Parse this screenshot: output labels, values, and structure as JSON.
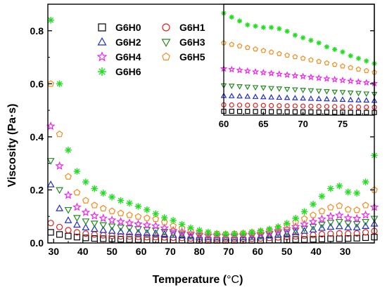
{
  "chart_data": {
    "type": "scatter",
    "title": "",
    "xlabel_prefix": "Temperature (",
    "xlabel_unit": "°C",
    "xlabel_suffix": ")",
    "ylabel": "Viscosity (Pa·s)",
    "ylim": [
      0,
      0.9
    ],
    "yticks": [
      "0.0",
      "0.2",
      "0.4",
      "0.6",
      "0.8"
    ],
    "xtick_labels": [
      "30",
      "40",
      "50",
      "60",
      "70",
      "80",
      "70",
      "60",
      "50",
      "40",
      "30"
    ],
    "x_axis_note": "Heating 29→85 °C then cooling 85→30 °C; x values are sequential process coordinates p (0–111), tick labels show temperature",
    "xlim_process": [
      -1,
      111
    ],
    "xtick_process": [
      1,
      11,
      21,
      31,
      41,
      51,
      61,
      71,
      81,
      91,
      101
    ],
    "legend_position": "upper-left",
    "series": [
      {
        "name": "G6H0",
        "marker": "square",
        "color": "#000000",
        "x": [
          0,
          3,
          6,
          9,
          12,
          15,
          18,
          21,
          24,
          27,
          30,
          33,
          36,
          39,
          42,
          45,
          48,
          51,
          54,
          57,
          60,
          63,
          66,
          69,
          72,
          75,
          78,
          81,
          84,
          87,
          90,
          93,
          96,
          99,
          102,
          105,
          108,
          111
        ],
        "y": [
          0.04,
          0.032,
          0.026,
          0.022,
          0.019,
          0.017,
          0.016,
          0.015,
          0.014,
          0.013,
          0.013,
          0.012,
          0.012,
          0.011,
          0.011,
          0.011,
          0.01,
          0.01,
          0.01,
          0.01,
          0.01,
          0.01,
          0.01,
          0.01,
          0.01,
          0.011,
          0.011,
          0.012,
          0.013,
          0.013,
          0.014,
          0.015,
          0.016,
          0.016,
          0.017,
          0.018,
          0.02,
          0.022
        ]
      },
      {
        "name": "G6H1",
        "marker": "circle",
        "color": "#e0201b",
        "x": [
          0,
          3,
          6,
          9,
          12,
          15,
          18,
          21,
          24,
          27,
          30,
          33,
          36,
          39,
          42,
          45,
          48,
          51,
          54,
          57,
          60,
          63,
          66,
          69,
          72,
          75,
          78,
          81,
          84,
          87,
          90,
          93,
          96,
          99,
          102,
          105,
          108,
          111
        ],
        "y": [
          0.075,
          0.06,
          0.048,
          0.04,
          0.035,
          0.032,
          0.029,
          0.027,
          0.025,
          0.024,
          0.023,
          0.022,
          0.022,
          0.021,
          0.02,
          0.019,
          0.017,
          0.016,
          0.015,
          0.015,
          0.015,
          0.015,
          0.016,
          0.016,
          0.017,
          0.019,
          0.021,
          0.023,
          0.025,
          0.027,
          0.03,
          0.033,
          0.035,
          0.036,
          0.035,
          0.036,
          0.04,
          0.045
        ]
      },
      {
        "name": "G6H2",
        "marker": "triangle-up",
        "color": "#1f2ccf",
        "x": [
          0,
          3,
          6,
          9,
          12,
          15,
          18,
          21,
          24,
          27,
          30,
          33,
          36,
          39,
          42,
          45,
          48,
          51,
          54,
          57,
          60,
          63,
          66,
          69,
          72,
          75,
          78,
          81,
          84,
          87,
          90,
          93,
          96,
          99,
          102,
          105,
          108,
          111
        ],
        "y": [
          0.22,
          0.13,
          0.085,
          0.068,
          0.058,
          0.052,
          0.048,
          0.045,
          0.042,
          0.04,
          0.038,
          0.037,
          0.036,
          0.033,
          0.03,
          0.027,
          0.024,
          0.022,
          0.021,
          0.02,
          0.02,
          0.02,
          0.021,
          0.022,
          0.024,
          0.027,
          0.031,
          0.035,
          0.04,
          0.045,
          0.05,
          0.056,
          0.06,
          0.062,
          0.058,
          0.058,
          0.063,
          0.072
        ]
      },
      {
        "name": "G6H3",
        "marker": "triangle-down",
        "color": "#228b22",
        "x": [
          0,
          3,
          6,
          9,
          12,
          15,
          18,
          21,
          24,
          27,
          30,
          33,
          36,
          39,
          42,
          45,
          48,
          51,
          54,
          57,
          60,
          63,
          66,
          69,
          72,
          75,
          78,
          81,
          84,
          87,
          90,
          93,
          96,
          99,
          102,
          105,
          108,
          111
        ],
        "y": [
          0.31,
          0.2,
          0.125,
          0.095,
          0.082,
          0.074,
          0.068,
          0.063,
          0.059,
          0.056,
          0.053,
          0.05,
          0.048,
          0.043,
          0.037,
          0.033,
          0.029,
          0.026,
          0.024,
          0.023,
          0.023,
          0.023,
          0.024,
          0.026,
          0.028,
          0.032,
          0.037,
          0.042,
          0.048,
          0.055,
          0.062,
          0.07,
          0.077,
          0.08,
          0.074,
          0.072,
          0.08,
          0.092
        ]
      },
      {
        "name": "G6H4",
        "marker": "star",
        "color": "#ee22ee",
        "x": [
          0,
          3,
          6,
          9,
          12,
          15,
          18,
          21,
          24,
          27,
          30,
          33,
          36,
          39,
          42,
          45,
          48,
          51,
          54,
          57,
          60,
          63,
          66,
          69,
          72,
          75,
          78,
          81,
          84,
          87,
          90,
          93,
          96,
          99,
          102,
          105,
          108,
          111
        ],
        "y": [
          0.44,
          0.29,
          0.18,
          0.135,
          0.115,
          0.102,
          0.093,
          0.086,
          0.08,
          0.075,
          0.071,
          0.067,
          0.064,
          0.056,
          0.047,
          0.041,
          0.036,
          0.032,
          0.029,
          0.028,
          0.028,
          0.028,
          0.03,
          0.032,
          0.035,
          0.04,
          0.046,
          0.053,
          0.061,
          0.07,
          0.08,
          0.09,
          0.1,
          0.104,
          0.094,
          0.092,
          0.105,
          0.135
        ]
      },
      {
        "name": "G6H5",
        "marker": "pentagon",
        "color": "#f28c1c",
        "x": [
          0,
          3,
          6,
          9,
          12,
          15,
          18,
          21,
          24,
          27,
          30,
          33,
          36,
          39,
          42,
          45,
          48,
          51,
          54,
          57,
          60,
          63,
          66,
          69,
          72,
          75,
          78,
          81,
          84,
          87,
          90,
          93,
          96,
          99,
          102,
          105,
          108,
          111
        ],
        "y": [
          0.6,
          0.41,
          0.25,
          0.19,
          0.16,
          0.142,
          0.13,
          0.12,
          0.112,
          0.105,
          0.099,
          0.094,
          0.09,
          0.078,
          0.064,
          0.055,
          0.046,
          0.04,
          0.036,
          0.034,
          0.033,
          0.034,
          0.036,
          0.039,
          0.043,
          0.049,
          0.057,
          0.067,
          0.078,
          0.091,
          0.105,
          0.12,
          0.134,
          0.14,
          0.126,
          0.124,
          0.142,
          0.2
        ]
      },
      {
        "name": "G6H6",
        "marker": "asterisk",
        "color": "#22dd22",
        "x": [
          0,
          3,
          6,
          9,
          12,
          15,
          18,
          21,
          24,
          27,
          30,
          33,
          36,
          39,
          42,
          45,
          48,
          51,
          54,
          57,
          60,
          63,
          66,
          69,
          72,
          75,
          78,
          81,
          84,
          87,
          90,
          93,
          96,
          99,
          102,
          105,
          108,
          111
        ],
        "y": [
          0.84,
          0.6,
          0.35,
          0.27,
          0.23,
          0.205,
          0.188,
          0.173,
          0.16,
          0.15,
          0.138,
          0.125,
          0.11,
          0.095,
          0.085,
          0.07,
          0.057,
          0.048,
          0.041,
          0.036,
          0.034,
          0.035,
          0.037,
          0.041,
          0.046,
          0.052,
          0.061,
          0.074,
          0.093,
          0.118,
          0.146,
          0.176,
          0.205,
          0.215,
          0.192,
          0.188,
          0.23,
          0.33
        ]
      }
    ],
    "inset": {
      "xlim": [
        60,
        79
      ],
      "xticks": [
        "60",
        "65",
        "70",
        "75"
      ],
      "note": "Zoom of the heating branch from 60 to 79 °C; values in Pa·s",
      "x": [
        60,
        61,
        62,
        63,
        64,
        65,
        66,
        67,
        68,
        69,
        70,
        71,
        72,
        73,
        74,
        75,
        76,
        77,
        78,
        79
      ],
      "series": {
        "G6H0": [
          0.012,
          0.012,
          0.0119,
          0.0119,
          0.0118,
          0.0118,
          0.0117,
          0.0117,
          0.0116,
          0.0116,
          0.0115,
          0.0115,
          0.0114,
          0.0114,
          0.0113,
          0.0113,
          0.0112,
          0.0112,
          0.0111,
          0.0111
        ],
        "G6H1": [
          0.017,
          0.0169,
          0.0168,
          0.0167,
          0.0166,
          0.0165,
          0.0164,
          0.0163,
          0.0162,
          0.0161,
          0.016,
          0.0159,
          0.0158,
          0.0157,
          0.0156,
          0.0155,
          0.0154,
          0.0153,
          0.0152,
          0.0151
        ],
        "G6H2": [
          0.024,
          0.0238,
          0.0236,
          0.0234,
          0.0232,
          0.023,
          0.0228,
          0.0226,
          0.0224,
          0.0222,
          0.022,
          0.0218,
          0.0216,
          0.0214,
          0.0212,
          0.021,
          0.0208,
          0.0206,
          0.0204,
          0.0202
        ],
        "G6H3": [
          0.032,
          0.0317,
          0.0313,
          0.031,
          0.0306,
          0.0303,
          0.0299,
          0.0296,
          0.0292,
          0.0289,
          0.0285,
          0.0282,
          0.0278,
          0.0275,
          0.0271,
          0.0268,
          0.0264,
          0.0261,
          0.0257,
          0.0254
        ],
        "G6H4": [
          0.045,
          0.0444,
          0.0438,
          0.0432,
          0.0426,
          0.042,
          0.0414,
          0.0408,
          0.0402,
          0.0396,
          0.039,
          0.0384,
          0.0378,
          0.0372,
          0.0366,
          0.036,
          0.0354,
          0.0348,
          0.0342,
          0.0336
        ],
        "G6H5": [
          0.065,
          0.0638,
          0.0626,
          0.0614,
          0.0602,
          0.059,
          0.0578,
          0.0566,
          0.0554,
          0.0542,
          0.053,
          0.0518,
          0.0506,
          0.0494,
          0.0482,
          0.047,
          0.0458,
          0.0446,
          0.0434,
          0.0422
        ],
        "G6H6": [
          0.088,
          0.085,
          0.082,
          0.079,
          0.078,
          0.077,
          0.077,
          0.076,
          0.074,
          0.071,
          0.069,
          0.067,
          0.065,
          0.062,
          0.06,
          0.058,
          0.055,
          0.053,
          0.051,
          0.049
        ]
      }
    }
  }
}
